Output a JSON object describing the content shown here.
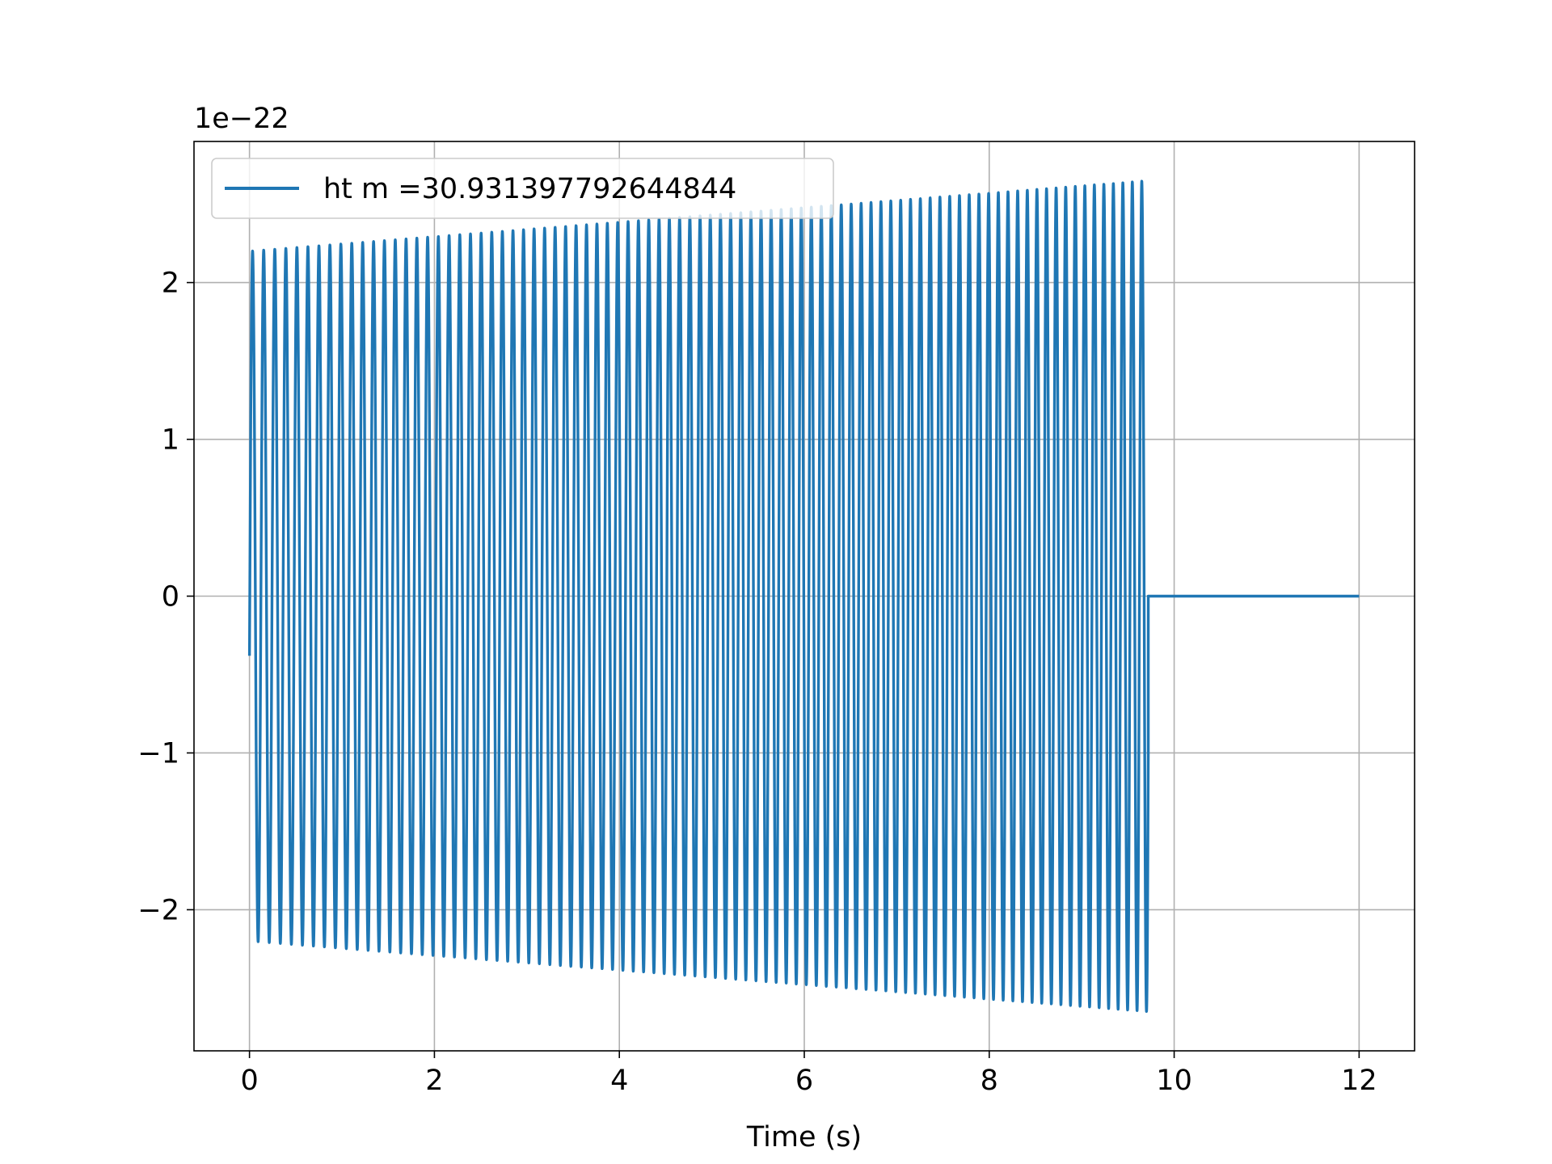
{
  "chart_data": {
    "type": "line",
    "title": "",
    "xlabel": "Time (s)",
    "ylabel": "",
    "y_offset_label": "1e−22",
    "xlim": [
      -0.6,
      12.6
    ],
    "ylim": [
      -2.9,
      2.9
    ],
    "x_ticks": [
      0,
      2,
      4,
      6,
      8,
      10,
      12
    ],
    "x_tick_labels": [
      "0",
      "2",
      "4",
      "6",
      "8",
      "10",
      "12"
    ],
    "y_ticks": [
      -2,
      -1,
      0,
      1,
      2
    ],
    "y_tick_labels": [
      "−2",
      "−1",
      "0",
      "1",
      "2"
    ],
    "grid": true,
    "legend_position": "upper-left",
    "series_color": "#1f77b4",
    "series": [
      {
        "name": "ht m =30.931397792644844",
        "signal": {
          "form": "chirped sinusoid",
          "t_start": 0.0,
          "t_end": 9.72,
          "t_max": 12.0,
          "initial_value": -0.38,
          "cycles": 88,
          "freq_start_hz": 8.3,
          "freq_end_hz": 9.8,
          "amp_start": 2.2,
          "amp_end": 2.65,
          "value_after_end": 0.0
        }
      }
    ]
  }
}
